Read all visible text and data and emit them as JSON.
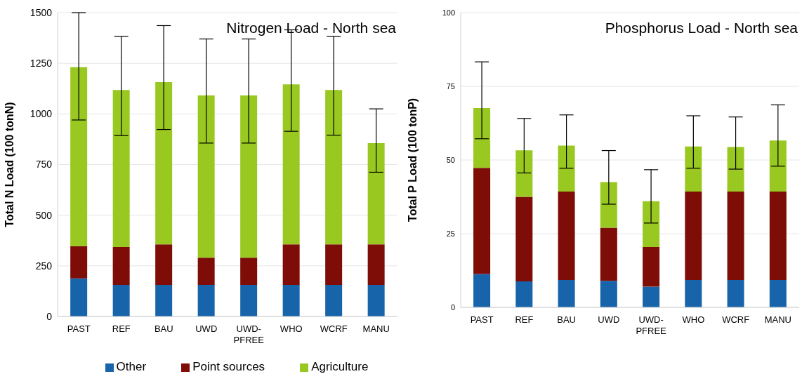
{
  "chart_data": [
    {
      "type": "bar",
      "title": "Nitrogen Load - North sea",
      "ylabel": "Total N Load (100 tonN)",
      "stacked": true,
      "grid": "y",
      "legend": "bottom",
      "categories": [
        "PAST",
        "REF",
        "BAU",
        "UWD",
        "UWD-PFREE",
        "WHO",
        "WCRF",
        "MANU"
      ],
      "ylim": [
        0,
        1500
      ],
      "yticks": [
        0,
        250,
        500,
        750,
        1000,
        1250,
        1500
      ],
      "series": [
        {
          "name": "Other",
          "color": "#1764ab",
          "values": [
            188,
            156,
            156,
            156,
            156,
            156,
            156,
            156
          ]
        },
        {
          "name": "Point sources",
          "color": "#7e0c07",
          "values": [
            159,
            187,
            200,
            134,
            134,
            200,
            200,
            200
          ]
        },
        {
          "name": "Agriculture",
          "color": "#99c820",
          "values": [
            884,
            775,
            801,
            801,
            801,
            790,
            762,
            500
          ],
          "errors": [
            [
              970,
              1500
            ],
            [
              893,
              1383
            ],
            [
              923,
              1436
            ],
            [
              856,
              1370
            ],
            [
              856,
              1370
            ],
            [
              914,
              1415
            ],
            [
              895,
              1383
            ],
            [
              712,
              1025
            ]
          ]
        }
      ]
    },
    {
      "type": "bar",
      "title": "Phosphorus Load - North sea",
      "ylabel": "Total P Load (100 tonP)",
      "stacked": true,
      "grid": "y",
      "categories": [
        "PAST",
        "REF",
        "BAU",
        "UWD",
        "UWD-PFREE",
        "WHO",
        "WCRF",
        "MANU"
      ],
      "ylim": [
        0,
        100
      ],
      "yticks": [
        0,
        25,
        50,
        75,
        100
      ],
      "series": [
        {
          "color": "#1764ab",
          "values": [
            11.3,
            8.8,
            9.3,
            9.0,
            7.0,
            9.3,
            9.3,
            9.3
          ]
        },
        {
          "color": "#7e0c07",
          "values": [
            36.0,
            28.7,
            30.0,
            18.0,
            13.5,
            30.0,
            30.0,
            30.0
          ]
        },
        {
          "color": "#99c820",
          "values": [
            20.3,
            15.8,
            15.6,
            15.5,
            15.5,
            15.3,
            15.1,
            17.3
          ],
          "errors": [
            [
              57.2,
              83.3
            ],
            [
              45.6,
              64.1
            ],
            [
              47.2,
              65.3
            ],
            [
              35.0,
              53.2
            ],
            [
              28.6,
              46.7
            ],
            [
              47.2,
              65.0
            ],
            [
              46.9,
              64.6
            ],
            [
              47.9,
              68.7
            ]
          ]
        }
      ]
    }
  ]
}
